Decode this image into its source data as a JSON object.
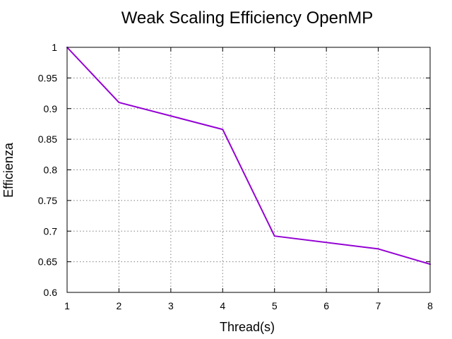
{
  "chart_data": {
    "type": "line",
    "title": "Weak Scaling Efficiency OpenMP",
    "xlabel": "Thread(s)",
    "ylabel": "Efficienza",
    "xlim": [
      1,
      8
    ],
    "ylim": [
      0.6,
      1
    ],
    "xticks": [
      "1",
      "2",
      "3",
      "4",
      "5",
      "6",
      "7",
      "8"
    ],
    "yticks": [
      "0.6",
      "0.65",
      "0.7",
      "0.75",
      "0.8",
      "0.85",
      "0.9",
      "0.95",
      "1"
    ],
    "grid": true,
    "legend": "none",
    "series": [
      {
        "color": "#9400d3",
        "x": [
          1,
          2,
          4,
          5,
          7,
          8
        ],
        "y": [
          1.0,
          0.91,
          0.866,
          0.692,
          0.671,
          0.646
        ]
      }
    ]
  }
}
